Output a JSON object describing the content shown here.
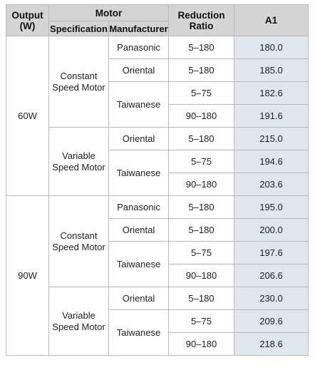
{
  "header": {
    "output_label": "Output\n(W)",
    "output_line1": "Output",
    "output_line2": "(W)",
    "motor_label": "Motor",
    "specification_label": "Specification",
    "manufacturer_label": "Manufacturer",
    "ratio_line1": "Reduction",
    "ratio_line2": "Ratio",
    "a1_label": "A1"
  },
  "groups": [
    {
      "output": "60W",
      "specs": [
        {
          "line1": "Constant",
          "line2": "Speed Motor",
          "manufacturers": [
            {
              "name": "Panasonic",
              "rows": [
                {
                  "ratio": "5–180",
                  "a1": "180.0"
                }
              ]
            },
            {
              "name": "Oriental",
              "rows": [
                {
                  "ratio": "5–180",
                  "a1": "185.0"
                }
              ]
            },
            {
              "name": "Taiwanese",
              "rows": [
                {
                  "ratio": "5–75",
                  "a1": "182.6"
                },
                {
                  "ratio": "90–180",
                  "a1": "191.6"
                }
              ]
            }
          ]
        },
        {
          "line1": "Variable",
          "line2": "Speed Motor",
          "manufacturers": [
            {
              "name": "Oriental",
              "rows": [
                {
                  "ratio": "5–180",
                  "a1": "215.0"
                }
              ]
            },
            {
              "name": "Taiwanese",
              "rows": [
                {
                  "ratio": "5–75",
                  "a1": "194.6"
                },
                {
                  "ratio": "90–180",
                  "a1": "203.6"
                }
              ]
            }
          ]
        }
      ]
    },
    {
      "output": "90W",
      "specs": [
        {
          "line1": "Constant",
          "line2": "Speed Motor",
          "manufacturers": [
            {
              "name": "Panasonic",
              "rows": [
                {
                  "ratio": "5–180",
                  "a1": "195.0"
                }
              ]
            },
            {
              "name": "Oriental",
              "rows": [
                {
                  "ratio": "5–180",
                  "a1": "200.0"
                }
              ]
            },
            {
              "name": "Taiwanese",
              "rows": [
                {
                  "ratio": "5–75",
                  "a1": "197.6"
                },
                {
                  "ratio": "90–180",
                  "a1": "206.6"
                }
              ]
            }
          ]
        },
        {
          "line1": "Variable",
          "line2": "Speed Motor",
          "manufacturers": [
            {
              "name": "Oriental",
              "rows": [
                {
                  "ratio": "5–180",
                  "a1": "230.0"
                }
              ]
            },
            {
              "name": "Taiwanese",
              "rows": [
                {
                  "ratio": "5–75",
                  "a1": "209.6"
                },
                {
                  "ratio": "90–180",
                  "a1": "218.6"
                }
              ]
            }
          ]
        }
      ]
    }
  ]
}
